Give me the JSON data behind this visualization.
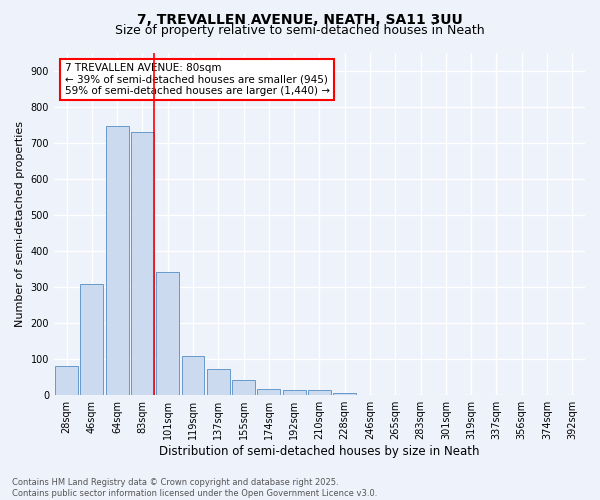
{
  "title1": "7, TREVALLEN AVENUE, NEATH, SA11 3UU",
  "title2": "Size of property relative to semi-detached houses in Neath",
  "xlabel": "Distribution of semi-detached houses by size in Neath",
  "ylabel": "Number of semi-detached properties",
  "bar_labels": [
    "28sqm",
    "46sqm",
    "64sqm",
    "83sqm",
    "101sqm",
    "119sqm",
    "137sqm",
    "155sqm",
    "174sqm",
    "192sqm",
    "210sqm",
    "228sqm",
    "246sqm",
    "265sqm",
    "283sqm",
    "301sqm",
    "319sqm",
    "337sqm",
    "356sqm",
    "374sqm",
    "392sqm"
  ],
  "bar_values": [
    80,
    307,
    745,
    730,
    340,
    108,
    70,
    40,
    15,
    12,
    12,
    5,
    0,
    0,
    0,
    0,
    0,
    0,
    0,
    0,
    0
  ],
  "bar_color": "#ccdaf0",
  "bar_edge_color": "#6699cc",
  "vline_color": "red",
  "vline_index": 3,
  "annotation_text": "7 TREVALLEN AVENUE: 80sqm\n← 39% of semi-detached houses are smaller (945)\n59% of semi-detached houses are larger (1,440) →",
  "annotation_box_color": "white",
  "annotation_box_edge": "red",
  "ylim": [
    0,
    950
  ],
  "yticks": [
    0,
    100,
    200,
    300,
    400,
    500,
    600,
    700,
    800,
    900
  ],
  "bg_color": "#eef2fb",
  "grid_color": "white",
  "footer_text": "Contains HM Land Registry data © Crown copyright and database right 2025.\nContains public sector information licensed under the Open Government Licence v3.0.",
  "title1_fontsize": 10,
  "title2_fontsize": 9,
  "xlabel_fontsize": 8.5,
  "ylabel_fontsize": 8,
  "tick_fontsize": 7,
  "annotation_fontsize": 7.5,
  "footer_fontsize": 6
}
